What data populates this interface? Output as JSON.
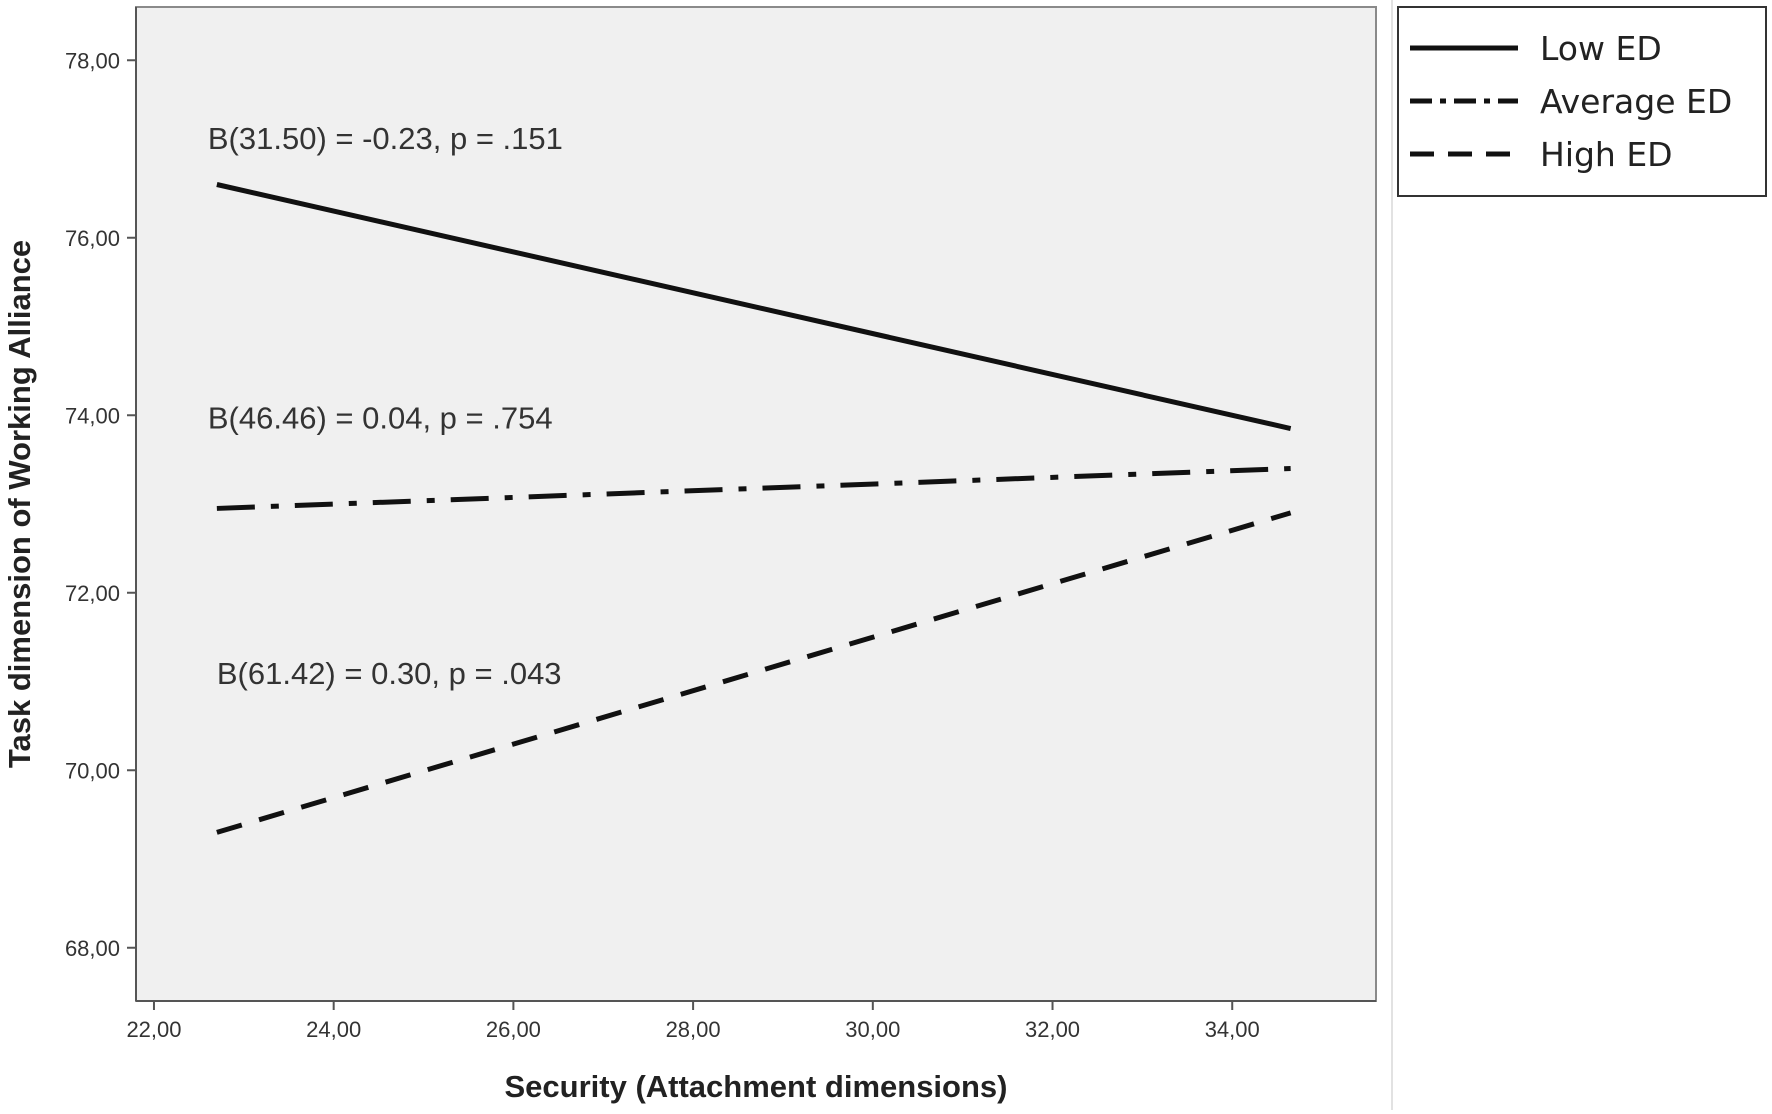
{
  "chart_data": {
    "type": "line",
    "title": "",
    "xlabel": "Security (Attachment dimensions)",
    "ylabel": "Task dimension of Working Alliance",
    "xlim": [
      21.8,
      35.6
    ],
    "ylim": [
      67.4,
      78.6
    ],
    "x_ticks": [
      "22,00",
      "24,00",
      "26,00",
      "28,00",
      "30,00",
      "32,00",
      "34,00"
    ],
    "y_ticks": [
      "68,00",
      "70,00",
      "72,00",
      "74,00",
      "76,00",
      "78,00"
    ],
    "grid": false,
    "legend_position": "right, outside plot",
    "plot_background": "#f0f0f0",
    "line_color": "#111111",
    "series": [
      {
        "name": "Low ED",
        "style": "solid",
        "x": [
          22.7,
          34.65
        ],
        "y": [
          76.6,
          73.85
        ]
      },
      {
        "name": "Average ED",
        "style": "dash-dot",
        "x": [
          22.7,
          34.65
        ],
        "y": [
          72.95,
          73.4
        ]
      },
      {
        "name": "High ED",
        "style": "dashed",
        "x": [
          22.7,
          34.65
        ],
        "y": [
          69.3,
          72.9
        ]
      }
    ],
    "annotations": [
      {
        "text": "B(31.50) = -0.23, p = .151",
        "x": 22.6,
        "y": 77.0
      },
      {
        "text": "B(46.46) = 0.04, p = .754",
        "x": 22.6,
        "y": 73.85
      },
      {
        "text": "B(61.42) = 0.30, p = .043",
        "x": 22.7,
        "y": 70.97
      }
    ]
  }
}
